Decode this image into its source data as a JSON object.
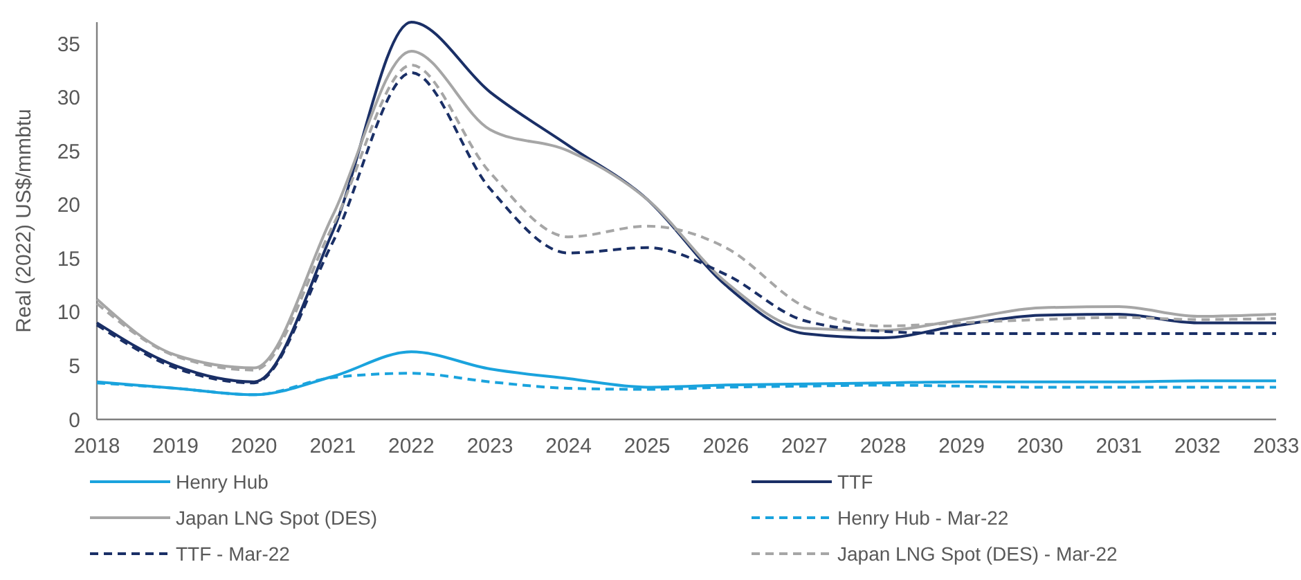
{
  "chart_data": {
    "type": "line",
    "ylabel": "Real (2022) US$/mmbtu",
    "x": [
      2018,
      2019,
      2020,
      2021,
      2022,
      2023,
      2024,
      2025,
      2026,
      2027,
      2028,
      2029,
      2030,
      2031,
      2032,
      2033
    ],
    "xlim": [
      2018,
      2033
    ],
    "xticks": [
      2018,
      2019,
      2020,
      2021,
      2022,
      2023,
      2024,
      2025,
      2026,
      2027,
      2028,
      2029,
      2030,
      2031,
      2032,
      2033
    ],
    "ylim": [
      0,
      37
    ],
    "yticks": [
      0,
      5,
      10,
      15,
      20,
      25,
      30,
      35
    ],
    "grid": false,
    "legend": "bottom",
    "marker": "none",
    "series": [
      {
        "name": "Henry Hub",
        "color": "#1aa3dd",
        "line_style": "solid",
        "values": [
          3.5,
          2.9,
          2.3,
          4.0,
          6.3,
          4.7,
          3.8,
          3.0,
          3.2,
          3.3,
          3.4,
          3.5,
          3.5,
          3.5,
          3.6,
          3.6
        ]
      },
      {
        "name": "TTF",
        "color": "#1a2f66",
        "line_style": "solid",
        "values": [
          9.0,
          5.0,
          3.5,
          17.5,
          37,
          30.5,
          25.5,
          20.5,
          12.5,
          8.0,
          7.6,
          8.8,
          9.7,
          9.8,
          9.0,
          9.0
        ]
      },
      {
        "name": "Japan LNG Spot (DES)",
        "color": "#a6a6a6",
        "line_style": "solid",
        "values": [
          11.2,
          6.0,
          4.8,
          19,
          34.3,
          27,
          25,
          20.5,
          12.8,
          8.5,
          8.3,
          9.3,
          10.4,
          10.5,
          9.6,
          9.8
        ]
      },
      {
        "name": "Henry Hub - Mar-22",
        "color": "#1aa3dd",
        "line_style": "dashed",
        "values": [
          3.4,
          2.9,
          2.3,
          3.9,
          4.3,
          3.5,
          2.9,
          2.8,
          3.0,
          3.1,
          3.2,
          3.1,
          3.0,
          3.0,
          3.0,
          3.0
        ]
      },
      {
        "name": "TTF - Mar-22",
        "color": "#1a2f66",
        "line_style": "dashed",
        "values": [
          8.8,
          4.8,
          3.4,
          16.5,
          32.3,
          21.5,
          15.5,
          16,
          13.5,
          9.2,
          8.2,
          8.0,
          8.0,
          8.0,
          8.0,
          8.0
        ]
      },
      {
        "name": "Japan LNG Spot (DES) - Mar-22",
        "color": "#a6a6a6",
        "line_style": "dashed",
        "values": [
          10.8,
          5.9,
          4.6,
          18,
          33,
          23,
          17,
          18,
          16,
          10.5,
          8.7,
          9.0,
          9.3,
          9.5,
          9.3,
          9.4
        ]
      }
    ]
  }
}
